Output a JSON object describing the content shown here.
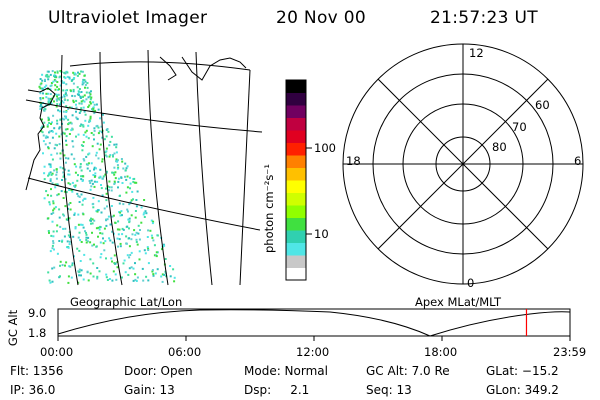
{
  "header": {
    "title": "Ultraviolet Imager",
    "date": "20 Nov 00",
    "time": "21:57:23 UT"
  },
  "colorbar": {
    "unit_label": "photon cm⁻²s⁻¹",
    "ticks": [
      {
        "label": "100",
        "value": 100
      },
      {
        "label": "10",
        "value": 10
      }
    ],
    "colors": [
      "#ffffff",
      "#c8c8c8",
      "#50e6e6",
      "#30d0b0",
      "#40e040",
      "#90ff00",
      "#d0ff00",
      "#ffff00",
      "#ffc000",
      "#ff8000",
      "#ff2000",
      "#e00020",
      "#c00040",
      "#700060",
      "#300040",
      "#000000"
    ]
  },
  "polar_plot": {
    "mlt_labels": {
      "top": "12",
      "bottom": "0",
      "left": "18",
      "right": "6"
    },
    "lat_labels": [
      "60",
      "70",
      "80"
    ]
  },
  "geo_panel": {
    "label": "Geographic Lat/Lon"
  },
  "apex_panel": {
    "label": "Apex MLat/MLT"
  },
  "altitude_plot": {
    "ylabel": "GC Alt",
    "ymax_label": "9.0",
    "ymin_label": "1.8",
    "x_ticks": [
      "00:00",
      "06:00",
      "12:00",
      "18:00",
      "23:59"
    ],
    "current_time_fraction": 0.915,
    "marker_color": "#ff0000"
  },
  "info": {
    "flt": "Flt: 1356",
    "ip": "IP: 36.0",
    "door": "Door: Open",
    "gain": "Gain: 13",
    "mode": "Mode: Normal",
    "dsp": "Dsp:     2.1",
    "gc_alt": "GC Alt: 7.0 Re",
    "seq": "Seq: 13",
    "glat": "GLat: −15.2",
    "glon": "GLon: 349.2"
  }
}
